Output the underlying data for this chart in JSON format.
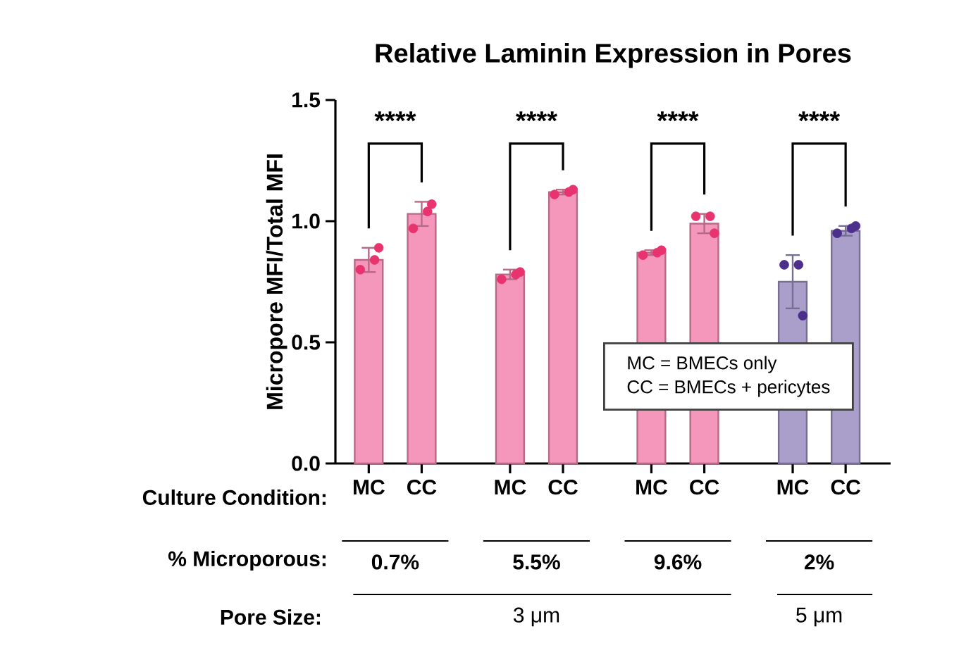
{
  "chart_data": {
    "type": "bar",
    "title": "Relative Laminin Expression in Pores",
    "ylabel": "Micropore MFI/Total MFI",
    "categories": [
      "MC",
      "CC",
      "MC",
      "CC",
      "MC",
      "CC",
      "MC",
      "CC"
    ],
    "series": [
      {
        "colors": [
          "#f48cb4",
          "#f48cb4",
          "#f48cb4",
          "#f48cb4",
          "#f48cb4",
          "#f48cb4",
          "#a093c4",
          "#a093c4"
        ],
        "values": [
          0.84,
          1.03,
          0.78,
          1.12,
          0.87,
          0.99,
          0.75,
          0.96
        ],
        "errors": [
          0.05,
          0.05,
          0.02,
          0.01,
          0.01,
          0.04,
          0.11,
          0.02
        ]
      },
      {
        "type": "scatter",
        "colors": [
          "#e8336f",
          "#e8336f",
          "#e8336f",
          "#e8336f",
          "#e8336f",
          "#e8336f",
          "#4b2f8a",
          "#4b2f8a"
        ],
        "values": [
          0.8,
          0.97,
          0.76,
          1.11,
          0.86,
          1.02,
          0.82,
          0.95
        ]
      },
      {
        "type": "scatter",
        "colors": [
          "#e8336f",
          "#e8336f",
          "#e8336f",
          "#e8336f",
          "#e8336f",
          "#e8336f",
          "#4b2f8a",
          "#4b2f8a"
        ],
        "values": [
          0.89,
          1.07,
          0.79,
          1.13,
          0.88,
          0.95,
          0.61,
          0.98
        ]
      },
      {
        "type": "scatter",
        "colors": [
          "#e8336f",
          "#e8336f",
          "#e8336f",
          "#e8336f",
          "#e8336f",
          "#e8336f",
          "#4b2f8a",
          "#4b2f8a"
        ],
        "values": [
          0.84,
          1.04,
          0.78,
          1.12,
          0.87,
          1.02,
          0.82,
          0.97
        ]
      }
    ],
    "marker": "circle",
    "ylim": [
      0,
      1.5
    ],
    "yticks": [
      {
        "value": 0,
        "label": "0.0"
      },
      {
        "value": 0.5,
        "label": "0.5"
      },
      {
        "value": 1,
        "label": "1.0"
      },
      {
        "value": 1.5,
        "label": "1.5"
      }
    ],
    "annotations": [
      "****",
      "****",
      "****",
      "****",
      "Culture Condition:",
      "% Microporous:",
      "0.7%",
      "5.5%",
      "9.6%",
      "2%",
      "Pore Size:",
      "3 μm",
      "5 μm",
      "MC = BMECs only",
      "CC = BMECs + pericytes"
    ]
  }
}
